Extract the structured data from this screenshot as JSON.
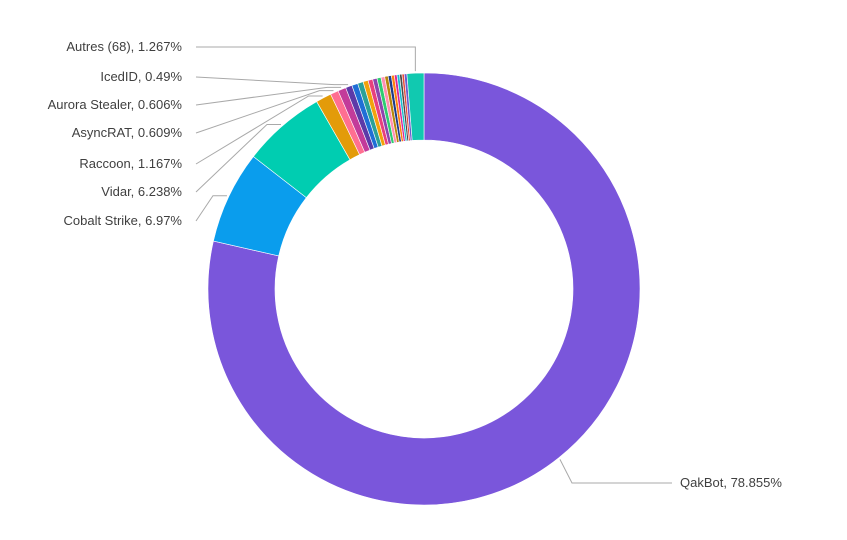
{
  "chart_data": {
    "type": "pie",
    "variant": "donut",
    "title": "",
    "legend": "none",
    "slices": [
      {
        "label": "QakBot",
        "value": 78.855,
        "display": "78.855%",
        "color": "#7a56db",
        "labeled": true
      },
      {
        "label": "Cobalt Strike",
        "value": 6.97,
        "display": "6.97%",
        "color": "#0a9ded",
        "labeled": true
      },
      {
        "label": "Vidar",
        "value": 6.238,
        "display": "6.238%",
        "color": "#00cdb1",
        "labeled": true
      },
      {
        "label": "Raccoon",
        "value": 1.167,
        "display": "1.167%",
        "color": "#e39b0a",
        "labeled": true
      },
      {
        "label": "AsyncRAT",
        "value": 0.609,
        "display": "0.609%",
        "color": "#ff6f91",
        "labeled": true
      },
      {
        "label": "Aurora Stealer",
        "value": 0.606,
        "display": "0.606%",
        "color": "#c33b9a",
        "labeled": true
      },
      {
        "label": "IcedID",
        "value": 0.49,
        "display": "0.49%",
        "color": "#5c3aa8",
        "labeled": true
      },
      {
        "label": "",
        "value": 0.45,
        "color": "#1f6fd6",
        "labeled": false
      },
      {
        "label": "",
        "value": 0.42,
        "color": "#2aa198",
        "labeled": false
      },
      {
        "label": "",
        "value": 0.38,
        "color": "#f2a20c",
        "labeled": false
      },
      {
        "label": "",
        "value": 0.35,
        "color": "#e8407d",
        "labeled": false
      },
      {
        "label": "",
        "value": 0.33,
        "color": "#8e44ad",
        "labeled": false
      },
      {
        "label": "",
        "value": 0.3,
        "color": "#2ecc71",
        "labeled": false
      },
      {
        "label": "",
        "value": 0.28,
        "color": "#ff8fb3",
        "labeled": false
      },
      {
        "label": "",
        "value": 0.26,
        "color": "#b8860b",
        "labeled": false
      },
      {
        "label": "",
        "value": 0.24,
        "color": "#1e3a8a",
        "labeled": false
      },
      {
        "label": "",
        "value": 0.22,
        "color": "#ff7f0e",
        "labeled": false
      },
      {
        "label": "",
        "value": 0.2,
        "color": "#d62798",
        "labeled": false
      },
      {
        "label": "",
        "value": 0.19,
        "color": "#17becf",
        "labeled": false
      },
      {
        "label": "",
        "value": 0.18,
        "color": "#4a4a4a",
        "labeled": false
      },
      {
        "label": "",
        "value": 0.17,
        "color": "#e74c3c",
        "labeled": false
      },
      {
        "label": "",
        "value": 0.2,
        "color": "#6a5acd",
        "labeled": false
      },
      {
        "label": "Autres (68)",
        "value": 1.267,
        "display": "1.267%",
        "color": "#11c9b0",
        "labeled": true
      }
    ],
    "labels": [
      {
        "text": "Autres (68), 1.267%",
        "slice": 22,
        "side": "left"
      },
      {
        "text": "IcedID, 0.49%",
        "slice": 6,
        "side": "left"
      },
      {
        "text": "Aurora Stealer, 0.606%",
        "slice": 5,
        "side": "left"
      },
      {
        "text": "AsyncRAT, 0.609%",
        "slice": 4,
        "side": "left"
      },
      {
        "text": "Raccoon, 1.167%",
        "slice": 3,
        "side": "left"
      },
      {
        "text": "Vidar, 6.238%",
        "slice": 2,
        "side": "left"
      },
      {
        "text": "Cobalt Strike, 6.97%",
        "slice": 1,
        "side": "left"
      },
      {
        "text": "QakBot, 78.855%",
        "slice": 0,
        "side": "right"
      }
    ]
  }
}
